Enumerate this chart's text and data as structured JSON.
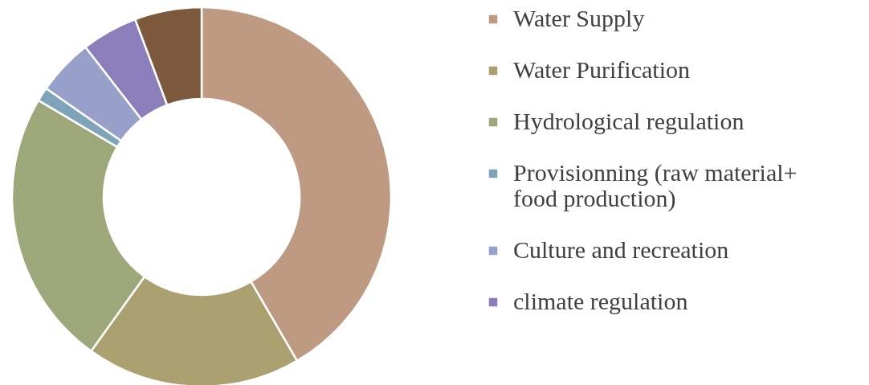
{
  "chart_data": {
    "type": "donut",
    "categories": [
      "Water Supply",
      "Water Purification",
      "Hydrological regulation",
      "Provisionning  (raw material+ food production)",
      "Culture and recreation",
      "climate regulation",
      null
    ],
    "values": [
      41.6,
      18.3,
      23.6,
      1.2,
      4.8,
      4.8,
      5.7
    ],
    "colors": [
      "#bf9a82",
      "#aba06f",
      "#9ca77a",
      "#7fa3b8",
      "#96a0c8",
      "#8c7dbb",
      "#7d5a3e"
    ],
    "legend": "right"
  }
}
